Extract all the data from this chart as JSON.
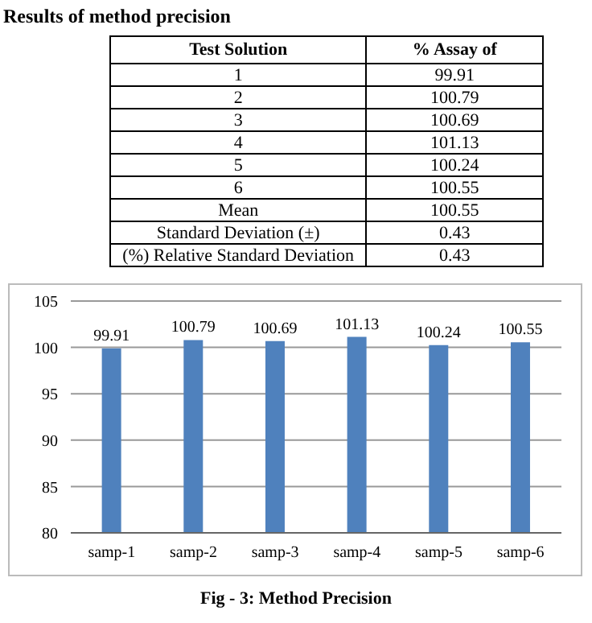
{
  "chart_data": {
    "type": "bar",
    "title": "Results of method precision",
    "categories": [
      "samp-1",
      "samp-2",
      "samp-3",
      "samp-4",
      "samp-5",
      "samp-6"
    ],
    "values": [
      99.91,
      100.79,
      100.69,
      101.13,
      100.24,
      100.55
    ],
    "color": "#4f81bd",
    "ylim": [
      80,
      105
    ],
    "yticks": [
      80,
      85,
      90,
      95,
      100,
      105
    ],
    "grid": "y",
    "data_labels": true,
    "legend": false,
    "annotations": [
      "Test Solution",
      "% Assay of",
      "1",
      "99.91",
      "2",
      "100.79",
      "3",
      "100.69",
      "4",
      "101.13",
      "5",
      "100.24",
      "6",
      "100.55",
      "Mean",
      "100.55",
      "Standard Deviation (±)",
      "0.43",
      "(%) Relative Standard Deviation",
      "0.43",
      "Fig - 3: Method Precision"
    ]
  }
}
